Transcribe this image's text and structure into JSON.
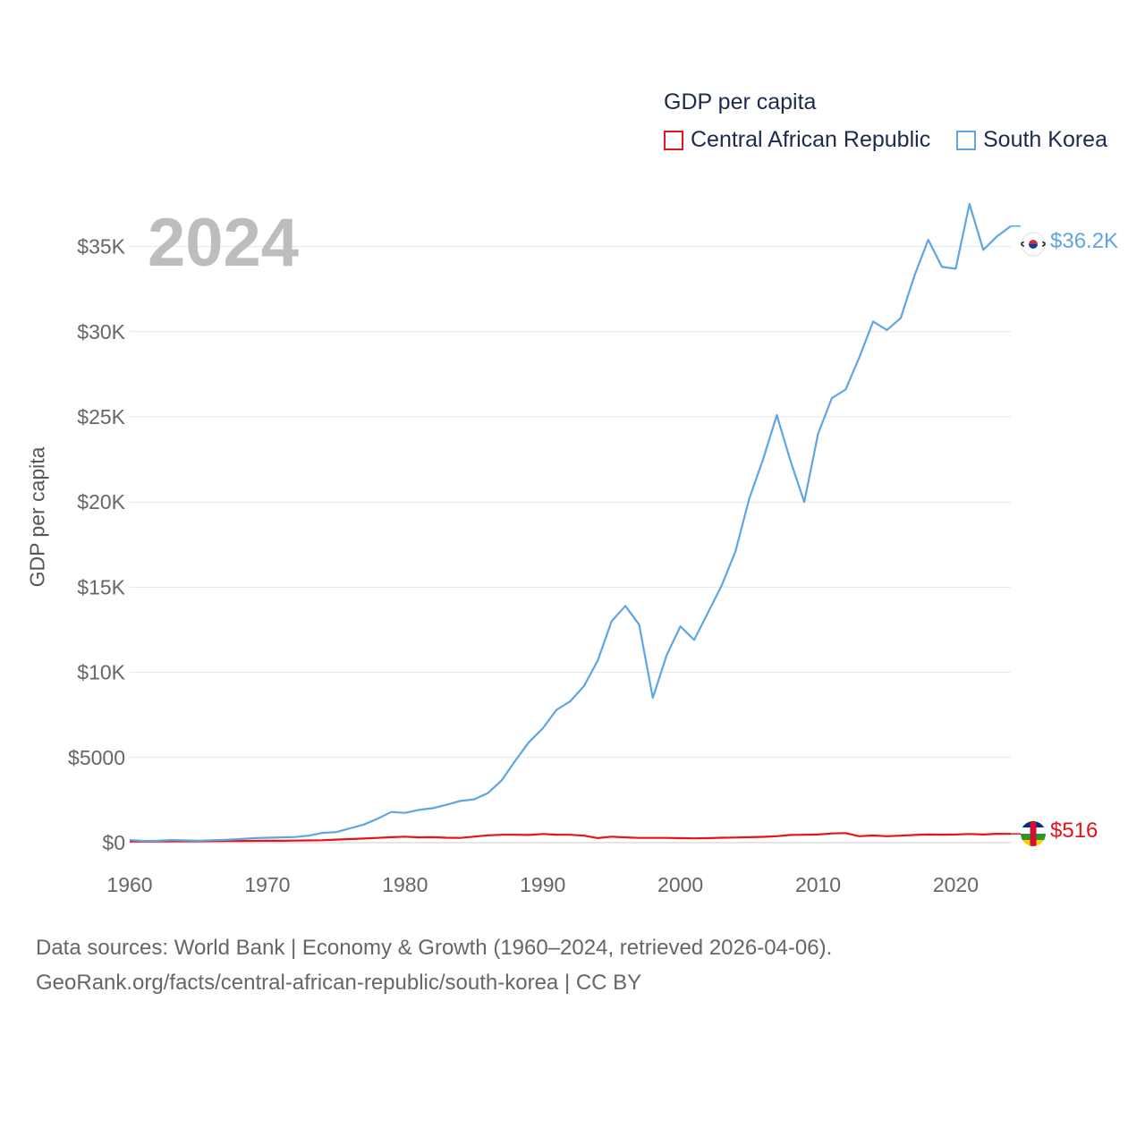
{
  "legend": {
    "title": "GDP per capita",
    "items": [
      {
        "name": "Central African Republic",
        "color": "#e8121a"
      },
      {
        "name": "South Korea",
        "color": "#5fa5e3"
      }
    ]
  },
  "year_label": "2024",
  "end_labels": {
    "south_korea": "$36.2K",
    "central_african_republic": "$516"
  },
  "footer": {
    "line1": "Data sources: World Bank | Economy & Growth (1960–2024, retrieved 2026-04-06).",
    "line2": "GeoRank.org/facts/central-african-republic/south-korea | CC BY"
  },
  "chart_data": {
    "type": "line",
    "title": "GDP per capita",
    "xlabel": "",
    "ylabel": "GDP per capita",
    "xlim": [
      1960,
      2024
    ],
    "ylim": [
      0,
      37500
    ],
    "grid": true,
    "x_ticks": [
      1960,
      1970,
      1980,
      1990,
      2000,
      2010,
      2020
    ],
    "x_tick_labels": [
      "1960",
      "1970",
      "1980",
      "1990",
      "2000",
      "2010",
      "2020"
    ],
    "y_ticks": [
      0,
      5000,
      10000,
      15000,
      20000,
      25000,
      30000,
      35000
    ],
    "y_tick_labels": [
      "$0",
      "$5000",
      "$10K",
      "$15K",
      "$20K",
      "$25K",
      "$30K",
      "$35K"
    ],
    "x": [
      1960,
      1961,
      1962,
      1963,
      1964,
      1965,
      1966,
      1967,
      1968,
      1969,
      1970,
      1971,
      1972,
      1973,
      1974,
      1975,
      1976,
      1977,
      1978,
      1979,
      1980,
      1981,
      1982,
      1983,
      1984,
      1985,
      1986,
      1987,
      1988,
      1989,
      1990,
      1991,
      1992,
      1993,
      1994,
      1995,
      1996,
      1997,
      1998,
      1999,
      2000,
      2001,
      2002,
      2003,
      2004,
      2005,
      2006,
      2007,
      2008,
      2009,
      2010,
      2011,
      2012,
      2013,
      2014,
      2015,
      2016,
      2017,
      2018,
      2019,
      2020,
      2021,
      2022,
      2023,
      2024
    ],
    "series": [
      {
        "name": "Central African Republic",
        "color": "#e8121a",
        "values": [
          70,
          75,
          80,
          80,
          85,
          85,
          90,
          95,
          100,
          105,
          110,
          110,
          120,
          130,
          140,
          180,
          210,
          240,
          280,
          320,
          350,
          310,
          320,
          290,
          280,
          350,
          430,
          460,
          460,
          450,
          510,
          470,
          460,
          410,
          270,
          350,
          310,
          280,
          280,
          280,
          260,
          250,
          260,
          290,
          300,
          320,
          340,
          380,
          450,
          460,
          480,
          540,
          560,
          380,
          420,
          380,
          410,
          450,
          480,
          470,
          480,
          510,
          480,
          520,
          516
        ]
      },
      {
        "name": "South Korea",
        "color": "#5fa5e3",
        "values": [
          160,
          100,
          110,
          150,
          130,
          110,
          140,
          170,
          210,
          260,
          290,
          310,
          330,
          410,
          570,
          620,
          840,
          1060,
          1400,
          1800,
          1750,
          1920,
          2020,
          2220,
          2450,
          2540,
          2900,
          3640,
          4800,
          5900,
          6700,
          7800,
          8300,
          9200,
          10700,
          13000,
          13900,
          12800,
          8500,
          11000,
          12700,
          11900,
          13500,
          15100,
          17100,
          20200,
          22500,
          25100,
          22400,
          20000,
          24000,
          26100,
          26600,
          28500,
          30600,
          30100,
          30800,
          33300,
          35400,
          33800,
          33700,
          37500,
          34800,
          35600,
          36200
        ]
      }
    ]
  }
}
